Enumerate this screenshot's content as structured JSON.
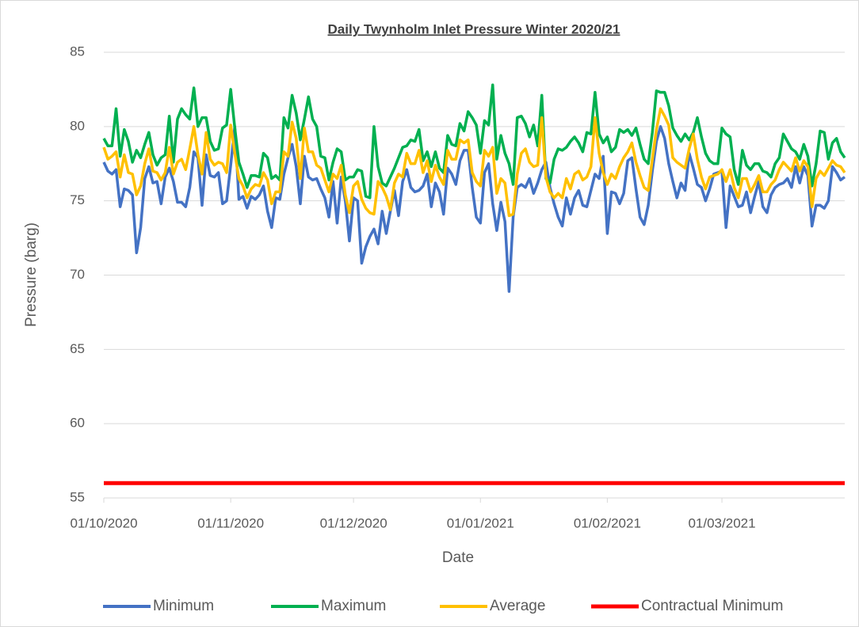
{
  "chart_data": {
    "type": "line",
    "title": "Daily Twynholm Inlet Pressure Winter 2020/21",
    "x_label": "Date",
    "y_label": "Pressure (barg)",
    "x": [
      "01/10/2020",
      "02/10/2020",
      "03/10/2020",
      "04/10/2020",
      "05/10/2020",
      "06/10/2020",
      "07/10/2020",
      "08/10/2020",
      "09/10/2020",
      "10/10/2020",
      "11/10/2020",
      "12/10/2020",
      "13/10/2020",
      "14/10/2020",
      "15/10/2020",
      "16/10/2020",
      "17/10/2020",
      "18/10/2020",
      "19/10/2020",
      "20/10/2020",
      "21/10/2020",
      "22/10/2020",
      "23/10/2020",
      "24/10/2020",
      "25/10/2020",
      "26/10/2020",
      "27/10/2020",
      "28/10/2020",
      "29/10/2020",
      "30/10/2020",
      "31/10/2020",
      "01/11/2020",
      "02/11/2020",
      "03/11/2020",
      "04/11/2020",
      "05/11/2020",
      "06/11/2020",
      "07/11/2020",
      "08/11/2020",
      "09/11/2020",
      "10/11/2020",
      "11/11/2020",
      "12/11/2020",
      "13/11/2020",
      "14/11/2020",
      "15/11/2020",
      "16/11/2020",
      "17/11/2020",
      "18/11/2020",
      "19/11/2020",
      "20/11/2020",
      "21/11/2020",
      "22/11/2020",
      "23/11/2020",
      "24/11/2020",
      "25/11/2020",
      "26/11/2020",
      "27/11/2020",
      "28/11/2020",
      "29/11/2020",
      "30/11/2020",
      "01/12/2020",
      "02/12/2020",
      "03/12/2020",
      "04/12/2020",
      "05/12/2020",
      "06/12/2020",
      "07/12/2020",
      "08/12/2020",
      "09/12/2020",
      "10/12/2020",
      "11/12/2020",
      "12/12/2020",
      "13/12/2020",
      "14/12/2020",
      "15/12/2020",
      "16/12/2020",
      "17/12/2020",
      "18/12/2020",
      "19/12/2020",
      "20/12/2020",
      "21/12/2020",
      "22/12/2020",
      "23/12/2020",
      "24/12/2020",
      "25/12/2020",
      "26/12/2020",
      "27/12/2020",
      "28/12/2020",
      "29/12/2020",
      "30/12/2020",
      "31/12/2020",
      "01/01/2021",
      "02/01/2021",
      "03/01/2021",
      "04/01/2021",
      "05/01/2021",
      "06/01/2021",
      "07/01/2021",
      "08/01/2021",
      "09/01/2021",
      "10/01/2021",
      "11/01/2021",
      "12/01/2021",
      "13/01/2021",
      "14/01/2021",
      "15/01/2021",
      "16/01/2021",
      "17/01/2021",
      "18/01/2021",
      "19/01/2021",
      "20/01/2021",
      "21/01/2021",
      "22/01/2021",
      "23/01/2021",
      "24/01/2021",
      "25/01/2021",
      "26/01/2021",
      "27/01/2021",
      "28/01/2021",
      "29/01/2021",
      "30/01/2021",
      "31/01/2021",
      "01/02/2021",
      "02/02/2021",
      "03/02/2021",
      "04/02/2021",
      "05/02/2021",
      "06/02/2021",
      "07/02/2021",
      "08/02/2021",
      "09/02/2021",
      "10/02/2021",
      "11/02/2021",
      "12/02/2021",
      "13/02/2021",
      "14/02/2021",
      "15/02/2021",
      "16/02/2021",
      "17/02/2021",
      "18/02/2021",
      "19/02/2021",
      "20/02/2021",
      "21/02/2021",
      "22/02/2021",
      "23/02/2021",
      "24/02/2021",
      "25/02/2021",
      "26/02/2021",
      "27/02/2021",
      "28/02/2021",
      "01/03/2021",
      "02/03/2021",
      "03/03/2021",
      "04/03/2021",
      "05/03/2021",
      "06/03/2021",
      "07/03/2021",
      "08/03/2021",
      "09/03/2021",
      "10/03/2021",
      "11/03/2021",
      "12/03/2021",
      "13/03/2021",
      "14/03/2021",
      "15/03/2021",
      "16/03/2021",
      "17/03/2021",
      "18/03/2021",
      "19/03/2021",
      "20/03/2021",
      "21/03/2021",
      "22/03/2021",
      "23/03/2021",
      "24/03/2021",
      "25/03/2021",
      "26/03/2021",
      "27/03/2021",
      "28/03/2021",
      "29/03/2021",
      "30/03/2021",
      "31/03/2021"
    ],
    "series": [
      {
        "name": "Minimum",
        "color": "#4472c4",
        "values": [
          77.6,
          77.0,
          76.8,
          77.1,
          74.6,
          75.8,
          75.7,
          75.4,
          71.5,
          73.2,
          76.5,
          77.3,
          76.2,
          76.3,
          74.8,
          76.6,
          77.2,
          76.3,
          74.9,
          74.9,
          74.6,
          75.9,
          78.3,
          77.9,
          74.7,
          78.1,
          76.7,
          76.6,
          76.9,
          74.8,
          75.0,
          77.4,
          80.0,
          75.1,
          75.3,
          74.5,
          75.3,
          75.1,
          75.4,
          76.0,
          74.3,
          73.2,
          75.2,
          75.1,
          76.8,
          77.9,
          78.8,
          77.3,
          74.8,
          78.0,
          76.6,
          76.4,
          76.5,
          75.8,
          75.2,
          73.9,
          76.3,
          73.5,
          76.6,
          75.0,
          72.3,
          75.2,
          75.0,
          70.8,
          71.9,
          72.6,
          73.1,
          72.1,
          74.3,
          72.8,
          74.3,
          75.7,
          74.0,
          76.3,
          77.1,
          75.9,
          75.6,
          75.7,
          76.0,
          76.8,
          74.6,
          76.2,
          75.6,
          74.1,
          77.2,
          76.8,
          76.1,
          77.7,
          78.4,
          78.4,
          75.9,
          73.9,
          73.5,
          76.9,
          77.5,
          74.8,
          73.0,
          74.9,
          73.6,
          68.9,
          73.9,
          75.9,
          76.1,
          75.9,
          76.5,
          75.5,
          76.2,
          77.1,
          77.6,
          75.9,
          74.8,
          73.9,
          73.3,
          75.2,
          74.1,
          75.2,
          75.7,
          74.7,
          74.6,
          75.7,
          76.8,
          76.5,
          78.0,
          72.8,
          75.6,
          75.5,
          74.8,
          75.5,
          77.7,
          77.9,
          75.8,
          73.9,
          73.4,
          74.7,
          77.0,
          79.0,
          80.0,
          79.2,
          77.5,
          76.3,
          75.2,
          76.2,
          75.7,
          78.2,
          77.2,
          76.1,
          75.9,
          75.0,
          75.8,
          76.8,
          76.9,
          77.0,
          73.2,
          76.0,
          75.3,
          74.6,
          74.7,
          75.6,
          74.2,
          75.3,
          76.3,
          74.6,
          74.2,
          75.4,
          75.9,
          76.1,
          76.2,
          76.5,
          75.9,
          77.3,
          76.2,
          77.3,
          76.7,
          73.3,
          74.7,
          74.7,
          74.5,
          75.0,
          77.3,
          76.9,
          76.4,
          76.6
        ]
      },
      {
        "name": "Maximum",
        "color": "#00b050",
        "values": [
          79.2,
          78.7,
          78.7,
          81.2,
          78.0,
          79.8,
          79.0,
          77.6,
          78.4,
          77.9,
          78.8,
          79.6,
          78.1,
          77.4,
          77.9,
          78.1,
          80.7,
          77.6,
          80.5,
          81.2,
          80.8,
          80.5,
          82.6,
          80.0,
          80.6,
          80.6,
          79.0,
          78.4,
          78.5,
          79.9,
          80.1,
          82.5,
          79.9,
          77.6,
          76.8,
          75.9,
          76.7,
          76.7,
          76.6,
          78.2,
          77.9,
          76.5,
          76.7,
          76.4,
          80.6,
          79.9,
          82.1,
          80.9,
          79.1,
          80.5,
          82.0,
          80.5,
          80.0,
          78.0,
          77.9,
          76.4,
          77.6,
          78.5,
          78.3,
          76.4,
          76.6,
          76.6,
          77.1,
          77.0,
          75.3,
          75.2,
          80.0,
          77.3,
          76.2,
          76.0,
          76.6,
          77.2,
          77.9,
          78.6,
          78.7,
          79.1,
          79.0,
          79.8,
          77.7,
          78.3,
          77.3,
          78.3,
          77.2,
          76.9,
          79.4,
          78.8,
          78.7,
          80.2,
          79.7,
          81.0,
          80.6,
          80.1,
          78.2,
          80.4,
          80.1,
          82.8,
          77.8,
          79.4,
          78.2,
          77.5,
          76.1,
          80.6,
          80.7,
          80.2,
          79.3,
          80.1,
          78.7,
          82.1,
          76.5,
          76.2,
          77.8,
          78.5,
          78.4,
          78.6,
          79.0,
          79.3,
          78.9,
          78.3,
          79.6,
          79.5,
          82.3,
          79.5,
          78.9,
          79.3,
          78.3,
          78.6,
          79.8,
          79.6,
          79.8,
          79.4,
          79.9,
          78.8,
          77.8,
          77.5,
          79.6,
          82.4,
          82.3,
          82.3,
          81.4,
          79.9,
          79.4,
          79.0,
          79.5,
          79.1,
          79.6,
          80.6,
          79.3,
          78.2,
          77.7,
          77.5,
          77.5,
          79.9,
          79.5,
          79.3,
          77.1,
          76.1,
          78.4,
          77.4,
          77.1,
          77.5,
          77.5,
          77.0,
          76.9,
          76.6,
          77.5,
          77.9,
          79.5,
          79.0,
          78.5,
          78.3,
          77.8,
          78.8,
          78.0,
          76.0,
          77.5,
          79.7,
          79.6,
          77.8,
          78.9,
          79.2,
          78.3,
          77.9
        ]
      },
      {
        "name": "Average",
        "color": "#ffc000",
        "values": [
          78.6,
          77.8,
          78.0,
          78.3,
          76.6,
          78.1,
          76.9,
          76.8,
          75.4,
          76.0,
          77.5,
          78.5,
          77.0,
          76.9,
          76.4,
          76.9,
          78.6,
          76.8,
          77.6,
          77.8,
          77.1,
          78.5,
          80.0,
          78.1,
          76.8,
          79.6,
          77.8,
          77.4,
          77.6,
          77.5,
          76.9,
          80.1,
          78.2,
          76.5,
          76.0,
          75.2,
          75.8,
          76.1,
          76.0,
          76.9,
          76.4,
          74.8,
          75.6,
          75.6,
          78.3,
          78.0,
          80.3,
          79.2,
          76.5,
          79.9,
          78.3,
          78.3,
          77.4,
          77.2,
          76.4,
          75.6,
          76.8,
          76.5,
          77.4,
          75.4,
          74.2,
          76.0,
          76.3,
          75.1,
          74.5,
          74.2,
          74.1,
          76.3,
          75.9,
          75.3,
          74.4,
          76.2,
          76.8,
          76.6,
          78.2,
          77.5,
          77.5,
          78.4,
          76.9,
          77.7,
          76.3,
          77.4,
          76.6,
          76.1,
          78.4,
          77.8,
          77.8,
          79.1,
          78.9,
          79.1,
          76.9,
          76.3,
          76.0,
          78.4,
          78.0,
          78.6,
          75.5,
          76.5,
          76.2,
          74.0,
          74.1,
          76.8,
          78.2,
          78.5,
          77.6,
          77.3,
          77.4,
          80.6,
          76.6,
          75.6,
          75.2,
          75.5,
          75.2,
          76.5,
          75.8,
          76.8,
          77.0,
          76.4,
          76.6,
          77.3,
          80.6,
          78.2,
          76.9,
          76.1,
          76.8,
          76.5,
          77.3,
          77.9,
          78.3,
          78.9,
          77.6,
          76.7,
          75.9,
          75.7,
          77.8,
          79.8,
          81.2,
          80.7,
          80.1,
          77.9,
          77.6,
          77.4,
          77.2,
          78.5,
          79.5,
          77.8,
          76.6,
          75.8,
          76.6,
          76.7,
          76.8,
          77.1,
          76.3,
          77.1,
          75.9,
          75.2,
          76.5,
          76.5,
          75.6,
          76.1,
          76.7,
          75.6,
          75.6,
          76.1,
          76.4,
          77.1,
          77.6,
          77.3,
          77.0,
          77.9,
          77.0,
          77.7,
          77.3,
          74.6,
          76.5,
          77.0,
          76.7,
          77.2,
          77.7,
          77.4,
          77.3,
          76.9
        ]
      },
      {
        "name": "Contractual Minimum",
        "color": "#ff0000",
        "x": [
          "01/10/2020",
          "31/03/2021"
        ],
        "values": [
          56,
          56
        ]
      }
    ],
    "xlim": [
      "01/10/2020",
      "31/03/2021"
    ],
    "xticks": [
      "01/10/2020",
      "01/11/2020",
      "01/12/2020",
      "01/01/2021",
      "01/02/2021",
      "01/03/2021"
    ],
    "ylim": [
      55,
      85
    ],
    "yticks": [
      55,
      60,
      65,
      70,
      75,
      80,
      85
    ],
    "grid": true,
    "legend": "bottom"
  }
}
